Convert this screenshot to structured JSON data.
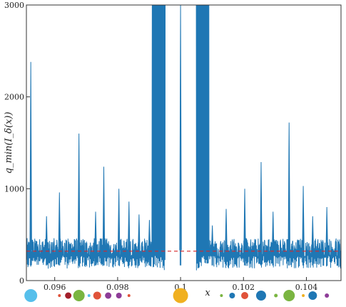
{
  "chart_data": {
    "type": "line",
    "title": "",
    "xlabel": "x",
    "ylabel": "q_min(I_δ(x))",
    "xlim": [
      0.0951,
      0.1051
    ],
    "ylim": [
      0,
      3000
    ],
    "x_ticks": [
      {
        "value": 0.096,
        "label": "0.096"
      },
      {
        "value": 0.098,
        "label": "0.098"
      },
      {
        "value": 0.1,
        "label": "0.1"
      },
      {
        "value": 0.102,
        "label": "0.102"
      },
      {
        "value": 0.104,
        "label": "0.104"
      }
    ],
    "y_ticks": [
      {
        "value": 0,
        "label": "0"
      },
      {
        "value": 1000,
        "label": "1000"
      },
      {
        "value": 2000,
        "label": "2000"
      },
      {
        "value": 3000,
        "label": "3000"
      }
    ],
    "grid": false,
    "series": [
      {
        "color": "#1f77b4",
        "baseline": 330,
        "spikes": [
          {
            "x": 0.09524,
            "y": 2380
          },
          {
            "x": 0.09615,
            "y": 960
          },
          {
            "x": 0.09677,
            "y": 1600
          },
          {
            "x": 0.0973,
            "y": 750
          },
          {
            "x": 0.09756,
            "y": 1240
          },
          {
            "x": 0.09804,
            "y": 1000
          },
          {
            "x": 0.09836,
            "y": 860
          },
          {
            "x": 0.09574,
            "y": 700
          },
          {
            "x": 0.09868,
            "y": 720
          },
          {
            "x": 0.09901,
            "y": 660
          },
          {
            "x": 0.1,
            "y": 3000
          },
          {
            "x": 0.10101,
            "y": 600
          },
          {
            "x": 0.10145,
            "y": 780
          },
          {
            "x": 0.10204,
            "y": 1000
          },
          {
            "x": 0.10256,
            "y": 1290
          },
          {
            "x": 0.10294,
            "y": 750
          },
          {
            "x": 0.10345,
            "y": 1720
          },
          {
            "x": 0.1039,
            "y": 1030
          },
          {
            "x": 0.1042,
            "y": 700
          },
          {
            "x": 0.10465,
            "y": 800
          }
        ]
      }
    ],
    "reference_line": {
      "y": 320,
      "color": "#d62728",
      "style": "dashed"
    },
    "markers": [
      {
        "x": 0.09524,
        "size": 18,
        "color": "#56bfeb"
      },
      {
        "x": 0.09615,
        "size": 4,
        "color": "#e0533a"
      },
      {
        "x": 0.09643,
        "size": 9,
        "color": "#a31f2b"
      },
      {
        "x": 0.09677,
        "size": 16,
        "color": "#7ab541"
      },
      {
        "x": 0.09709,
        "size": 4,
        "color": "#56bfeb"
      },
      {
        "x": 0.09735,
        "size": 11,
        "color": "#e0533a"
      },
      {
        "x": 0.0977,
        "size": 9,
        "color": "#8e3d98"
      },
      {
        "x": 0.09804,
        "size": 8,
        "color": "#8e3d98"
      },
      {
        "x": 0.09836,
        "size": 4,
        "color": "#e0533a"
      },
      {
        "x": 0.1,
        "size": 21,
        "color": "#f0b020"
      },
      {
        "x": 0.1013,
        "size": 4,
        "color": "#7ab541"
      },
      {
        "x": 0.10164,
        "size": 8,
        "color": "#1f77b4"
      },
      {
        "x": 0.10204,
        "size": 10,
        "color": "#e0533a"
      },
      {
        "x": 0.10256,
        "size": 14,
        "color": "#1f77b4"
      },
      {
        "x": 0.10303,
        "size": 5,
        "color": "#7ab541"
      },
      {
        "x": 0.10345,
        "size": 16,
        "color": "#7ab541"
      },
      {
        "x": 0.1039,
        "size": 4,
        "color": "#f0b020"
      },
      {
        "x": 0.1042,
        "size": 12,
        "color": "#1f77b4"
      },
      {
        "x": 0.10465,
        "size": 6,
        "color": "#8e3d98"
      }
    ]
  }
}
